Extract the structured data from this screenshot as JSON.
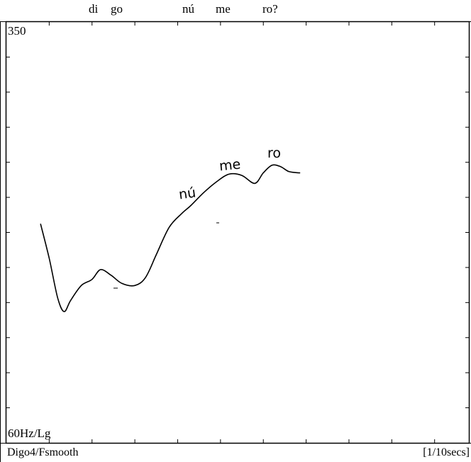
{
  "transcript": {
    "syllables": [
      "di",
      "go",
      "nú",
      "me",
      "ro?"
    ]
  },
  "annotations": [
    "nú",
    "me",
    "ro"
  ],
  "footer": {
    "left": "Digo4/Fsmooth",
    "right": "[1/10secs]"
  },
  "chart_data": {
    "type": "line",
    "title": "",
    "ylabel_top": "350",
    "ylabel_bottom": "60Hz/Lg",
    "xlabel": "[1/10secs]",
    "y_scale": "log",
    "ylim": [
      60,
      350
    ],
    "xlim": [
      0,
      10.8
    ],
    "grid": false,
    "series": [
      {
        "x": [
          0.8,
          1.0,
          1.2,
          1.35,
          1.5,
          1.75,
          2.0,
          2.2,
          2.45,
          2.7,
          3.0,
          3.25,
          3.5,
          3.8,
          4.1,
          4.3,
          4.6,
          4.9,
          5.2,
          5.5,
          5.8,
          6.0,
          6.2,
          6.4,
          6.6,
          6.85
        ],
        "y": [
          150,
          130,
          110,
          104,
          109,
          116,
          119,
          124,
          121,
          117,
          116,
          120,
          132,
          148,
          157,
          162,
          171,
          179,
          185,
          184,
          178,
          186,
          192,
          191,
          187,
          186
        ]
      }
    ]
  }
}
